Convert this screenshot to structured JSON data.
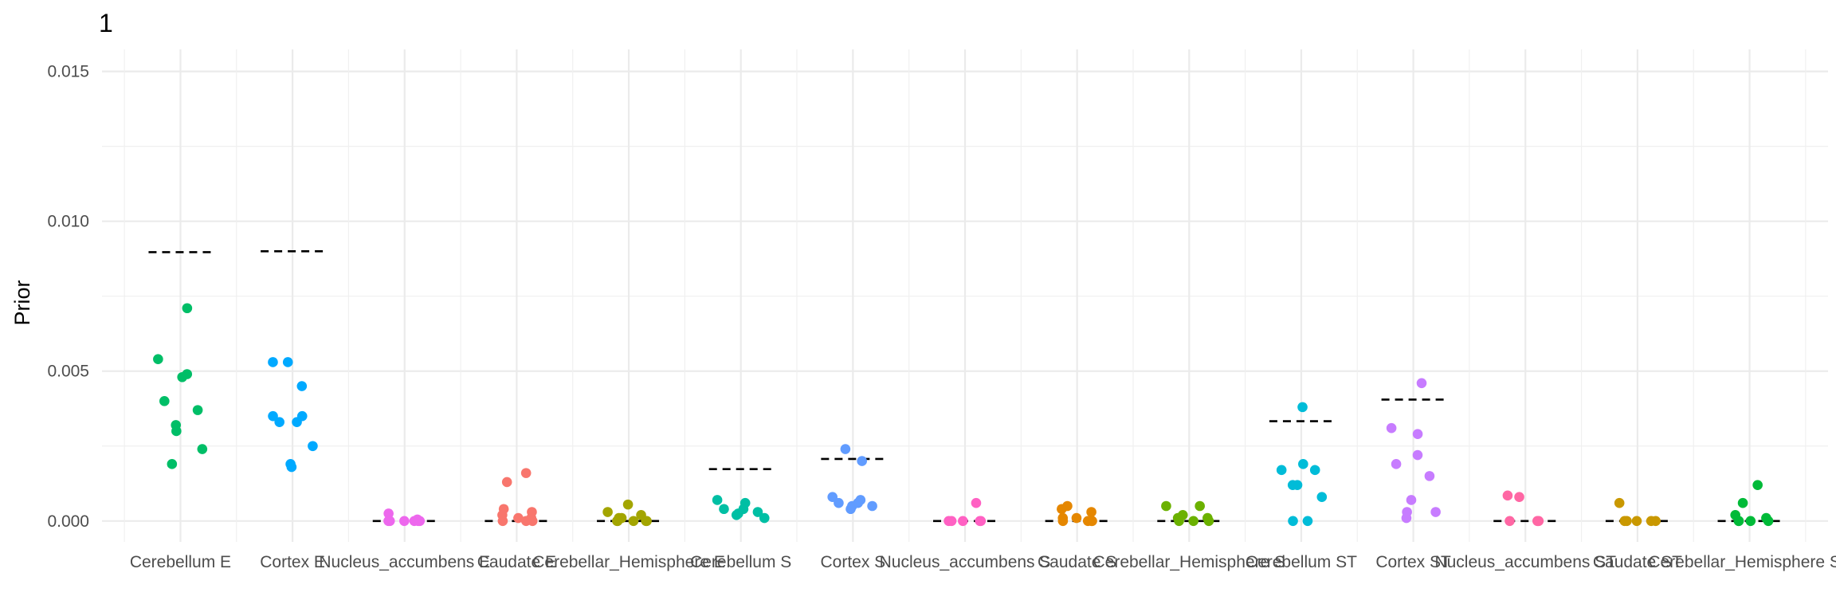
{
  "chart_data": {
    "type": "scatter",
    "title": "1",
    "xlabel": "",
    "ylabel": "Prior",
    "ylim": [
      -0.0007,
      0.0158
    ],
    "yticks": [
      0.0,
      0.005,
      0.01,
      0.015
    ],
    "ytick_labels": [
      "0.000",
      "0.005",
      "0.010",
      "0.015"
    ],
    "grid": true,
    "legend": "none",
    "categories": [
      "Cerebellum E",
      "Cortex E",
      "Nucleus_accumbens E",
      "Caudate E",
      "Cerebellar_Hemisphere E",
      "Cerebellum S",
      "Cortex S",
      "Nucleus_accumbens S",
      "Caudate S",
      "Cerebellar_Hemisphere S",
      "Cerebellum ST",
      "Cortex ST",
      "Nucleus_accumbens ST",
      "Caudate ST",
      "Cerebellar_Hemisphere ST"
    ],
    "colors": [
      "#00BE67",
      "#00A9FF",
      "#ED68ED",
      "#F8766D",
      "#A3A500",
      "#00BFA4",
      "#619CFF",
      "#FF61C3",
      "#E58700",
      "#6BB100",
      "#00BCD8",
      "#C77CFF",
      "#FF67A4",
      "#C99800",
      "#00BA38"
    ],
    "reference_values": [
      0.00897,
      0.009,
      0.0,
      0.0,
      0.0,
      0.00173,
      0.00207,
      0.0,
      0.0,
      0.0,
      0.00333,
      0.00405,
      0.0,
      0.0,
      0.0
    ],
    "points": [
      [
        0.0071,
        0.0054,
        0.0049,
        0.0048,
        0.004,
        0.0037,
        0.0032,
        0.003,
        0.0024,
        0.0019
      ],
      [
        0.0053,
        0.0053,
        0.0045,
        0.0035,
        0.0035,
        0.0033,
        0.0033,
        0.0025,
        0.0019,
        0.0018
      ],
      [
        0.00025,
        5e-05,
        0.0,
        0.0,
        0.0,
        0.0,
        0.0,
        0.0
      ],
      [
        0.0016,
        0.0013,
        0.0004,
        0.0003,
        0.0002,
        0.0001,
        0.0001,
        0.0,
        0.0,
        0.0
      ],
      [
        0.00055,
        0.0003,
        0.0002,
        0.0001,
        0.0001,
        0.0,
        0.0,
        0.0,
        0.0,
        0.0
      ],
      [
        0.0007,
        0.0006,
        0.0004,
        0.0004,
        0.0003,
        0.00025,
        0.0002,
        0.0001
      ],
      [
        0.0024,
        0.002,
        0.0008,
        0.0007,
        0.0006,
        0.0006,
        0.0005,
        0.0005,
        0.0004
      ],
      [
        0.0006,
        0.0,
        0.0,
        0.0,
        0.0,
        0.0
      ],
      [
        0.0005,
        0.0004,
        0.0003,
        0.0001,
        0.0001,
        0.0,
        0.0,
        0.0,
        0.0
      ],
      [
        0.0005,
        0.0005,
        0.0002,
        0.0001,
        0.0001,
        0.0,
        0.0,
        0.0
      ],
      [
        0.0038,
        0.0019,
        0.0017,
        0.0017,
        0.0012,
        0.0012,
        0.0008,
        0.0,
        0.0
      ],
      [
        0.0046,
        0.0031,
        0.0029,
        0.0022,
        0.0019,
        0.0015,
        0.0007,
        0.0003,
        0.0003,
        0.0001
      ],
      [
        0.00085,
        0.0008,
        0.0,
        0.0,
        0.0,
        0.0
      ],
      [
        0.0006,
        0.0,
        0.0,
        0.0,
        0.0,
        0.0
      ],
      [
        0.0012,
        0.0006,
        0.0002,
        0.0001,
        0.0,
        0.0,
        0.0,
        0.0
      ]
    ]
  }
}
